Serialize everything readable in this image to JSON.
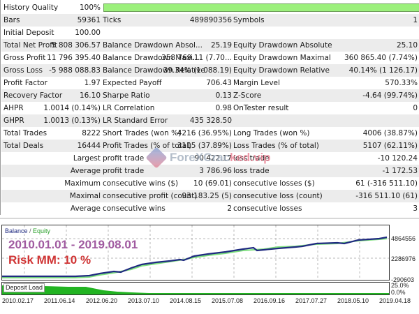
{
  "report": {
    "rows": [
      {
        "c1": "History Quality",
        "v1": "100%",
        "c2": "",
        "v2": "",
        "c3": "",
        "v3": "",
        "quality_bar": true
      },
      {
        "c1": "Bars",
        "v1": "59361",
        "c2": "Ticks",
        "v2": "489890356",
        "c3": "Symbols",
        "v3": "1"
      },
      {
        "c1": "Initial Deposit",
        "v1": "100.00",
        "c2": "",
        "v2": "",
        "c3": "",
        "v3": ""
      },
      {
        "c1": "Total Net Profit",
        "v1": "5 808 306.57",
        "c2": "Balance Drawdown Absol...",
        "v2": "25.19",
        "c3": "Equity Drawdown Absolute",
        "v3": "25.10"
      },
      {
        "c1": "Gross Profit",
        "v1": "11 796 395.40",
        "c2": "Balance Drawdown Maxi...",
        "v2": "358 769.11 (7.70...",
        "c3": "Equity Drawdown Maximal",
        "v3": "360 865.40 (7.74%)"
      },
      {
        "c1": "Gross Loss",
        "v1": "-5 988 088.83",
        "c2": "Balance Drawdown Relative",
        "v2": "39.34% (1 088.19)",
        "c3": "Equity Drawdown Relative",
        "v3": "40.14% (1 126.17)"
      },
      {
        "c1": "Profit Factor",
        "v1": "1.97",
        "c2": "Expected Payoff",
        "v2": "706.43",
        "c3": "Margin Level",
        "v3": "570.33%"
      },
      {
        "c1": "Recovery Factor",
        "v1": "16.10",
        "c2": "Sharpe Ratio",
        "v2": "0.13",
        "c3": "Z-Score",
        "v3": "-4.64 (99.74%)"
      },
      {
        "c1": "AHPR",
        "v1": "1.0014 (0.14%)",
        "c2": "LR Correlation",
        "v2": "0.98",
        "c3": "OnTester result",
        "v3": "0"
      },
      {
        "c1": "GHPR",
        "v1": "1.0013 (0.13%)",
        "c2": "LR Standard Error",
        "v2": "435 328.50",
        "c3": "",
        "v3": ""
      },
      {
        "c1": "Total Trades",
        "v1": "8222",
        "c2": "Short Trades (won %)",
        "v2": "4216 (36.95%)",
        "c3": "Long Trades (won %)",
        "v3": "4006 (38.87%)"
      },
      {
        "c1": "Total Deals",
        "v1": "16444",
        "c2": "Profit Trades (% of total)",
        "v2": "3115 (37.89%)",
        "c3": "Loss Trades (% of total)",
        "v3": "5107 (62.11%)"
      },
      {
        "c1": "",
        "v1": "Largest",
        "c2": "profit trade",
        "v2": "90 422.17",
        "c3": "loss trade",
        "v3": "-10 120.24"
      },
      {
        "c1": "",
        "v1": "Average",
        "c2": "profit trade",
        "v2": "3 786.96",
        "c3": "loss trade",
        "v3": "-1 172.53"
      },
      {
        "c1": "",
        "v1": "Maximum",
        "c2": "consecutive wins ($)",
        "v2": "10 (69.01)",
        "c3": "consecutive losses ($)",
        "v3": "61 (-316 511.10)"
      },
      {
        "c1": "",
        "v1": "Maximal",
        "c2": "consecutive profit (count)",
        "v2": "93 183.25 (5)",
        "c3": "consecutive loss (count)",
        "v3": "-316 511.10 (61)"
      },
      {
        "c1": "",
        "v1": "Average",
        "c2": "consecutive wins",
        "v2": "2",
        "c3": "consecutive losses",
        "v3": "3"
      }
    ]
  },
  "watermark": {
    "text_main": "ForeXCrac",
    "text_accent": "ked.vip"
  },
  "chart": {
    "legend_balance": "Balance",
    "legend_sep": " / ",
    "legend_equity": "Equity",
    "annotation_period": "2010.01.01 - 2019.08.01",
    "annotation_risk": "Risk MM: 10 %",
    "y_labels": [
      "4864556",
      "2286976",
      "-290603"
    ],
    "deposit_load_label": "Deposit Load",
    "deposit_y_labels": [
      "25.0%",
      "0.0%"
    ],
    "x_labels": [
      "2010.02.17",
      "2011.06.14",
      "2012.06.20",
      "2013.07.10",
      "2014.08.15",
      "2015.07.08",
      "2016.09.16",
      "2017.07.27",
      "2018.05.10",
      "2019.04.18"
    ],
    "colors": {
      "balance": "#1f2a80",
      "equity": "#2aa02a",
      "deposit": "#22b422",
      "period": "#a05aa0",
      "risk": "#d03434"
    }
  },
  "chart_data": {
    "type": "line",
    "title": "Balance / Equity",
    "x": [
      "2010.02.17",
      "2011.06.14",
      "2012.06.20",
      "2013.07.10",
      "2014.08.15",
      "2015.07.08",
      "2016.09.16",
      "2017.07.27",
      "2018.05.10",
      "2019.04.18"
    ],
    "series": [
      {
        "name": "Balance",
        "values": [
          100,
          100,
          300000,
          1500000,
          2600000,
          3900000,
          4300000,
          4900000,
          5200000,
          5800000
        ]
      },
      {
        "name": "Equity",
        "values": [
          100,
          100,
          290000,
          1480000,
          2580000,
          3880000,
          4280000,
          4880000,
          5180000,
          5780000
        ]
      }
    ],
    "ylim": [
      -290603,
      6000000
    ],
    "y_ticks": [
      -290603,
      2286976,
      4864556
    ],
    "grid": true,
    "legend_position": "top-left"
  }
}
